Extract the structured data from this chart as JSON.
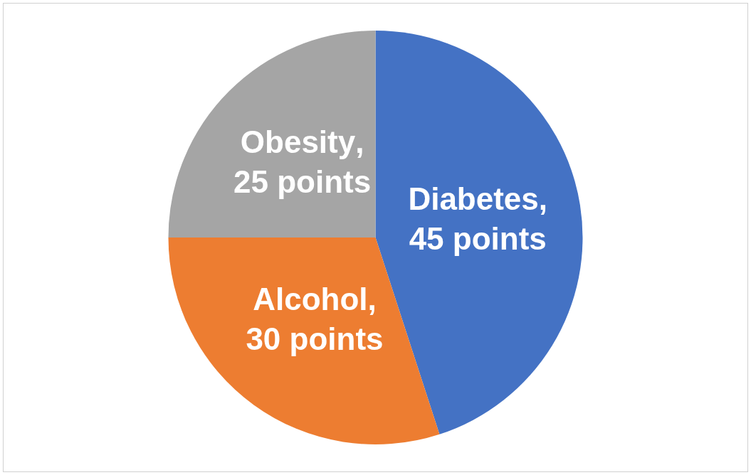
{
  "chart_data": {
    "type": "pie",
    "categories": [
      "Diabetes",
      "Alcohol",
      "Obesity"
    ],
    "values": [
      45,
      30,
      25
    ],
    "colors": [
      "#4472c4",
      "#ed7d31",
      "#a5a5a5"
    ],
    "value_labels": [
      ", 45 points",
      ", 30 points",
      ", 25 points"
    ],
    "legend": false
  }
}
